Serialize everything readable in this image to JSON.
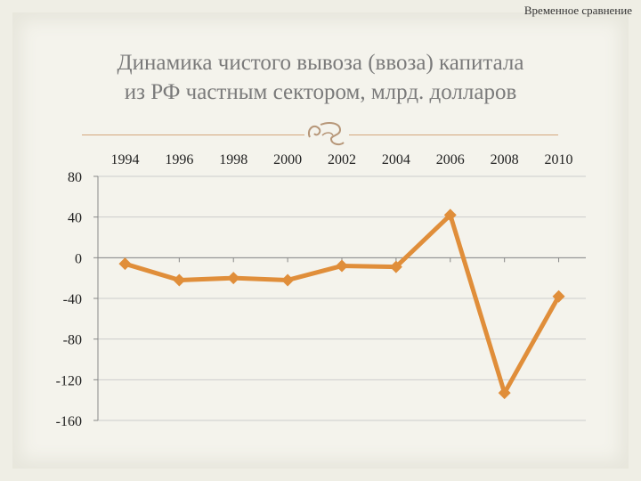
{
  "header": {
    "corner_label": "Временное сравнение"
  },
  "slide": {
    "title_line1": "Динамика чистого вывоза (ввоза) капитала",
    "title_line2": "из РФ частным сектором, млрд. долларов",
    "divider_icon": "swirl-ornament-icon"
  },
  "colors": {
    "series": "#e08e3a",
    "axis": "#888888",
    "grid": "#cccccc",
    "background": "#f4f3ec"
  },
  "chart_data": {
    "type": "line",
    "x": [
      1994,
      1996,
      1998,
      2000,
      2002,
      2004,
      2006,
      2008,
      2010
    ],
    "series": [
      {
        "values": [
          -6,
          -22,
          -20,
          -22,
          -8,
          -9,
          42,
          -133,
          -38
        ]
      }
    ],
    "xticks": [
      "1994",
      "1996",
      "1998",
      "2000",
      "2002",
      "2004",
      "2006",
      "2008",
      "2010"
    ],
    "yticks": [
      80,
      40,
      0,
      -40,
      -80,
      -120,
      -160
    ],
    "ylim": [
      -160,
      80
    ],
    "x_axis_position": "top",
    "grid": true,
    "legend": "none"
  }
}
